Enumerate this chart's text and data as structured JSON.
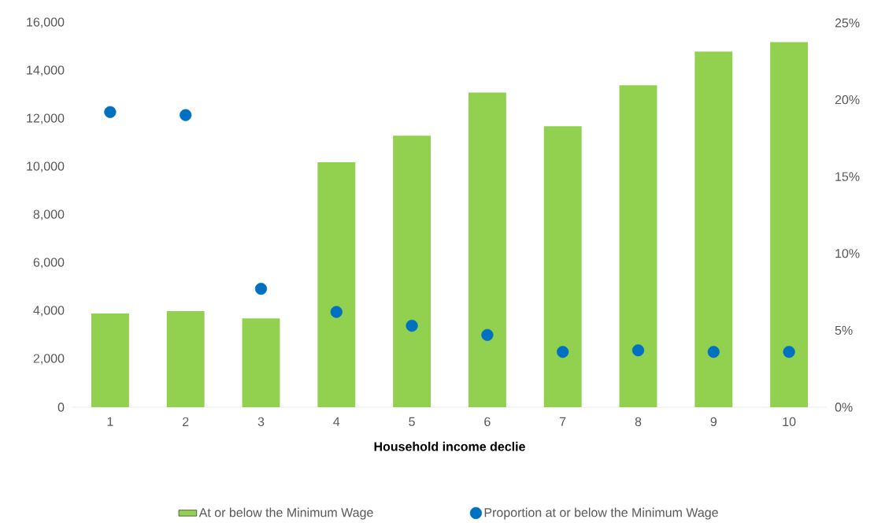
{
  "chart_data": {
    "type": "bar",
    "xlabel": "Household income declie",
    "categories": [
      "1",
      "2",
      "3",
      "4",
      "5",
      "6",
      "7",
      "8",
      "9",
      "10"
    ],
    "series": [
      {
        "name": "At or below the Minimum Wage",
        "color": "#92d050",
        "values": [
          3900,
          4000,
          3700,
          10200,
          11300,
          13100,
          11700,
          13400,
          14800,
          15200
        ]
      },
      {
        "name": "Proportion at or below the Minimum Wage",
        "type": "scatter",
        "axis": "y2",
        "color": "#0070c0",
        "values": [
          19.2,
          19.0,
          7.7,
          6.2,
          5.3,
          4.7,
          3.6,
          3.7,
          3.6,
          3.6
        ]
      }
    ],
    "ylim": [
      0,
      16000
    ],
    "yticks": [
      {
        "value": 0,
        "label": "0"
      },
      {
        "value": 2000,
        "label": "2,000"
      },
      {
        "value": 4000,
        "label": "4,000"
      },
      {
        "value": 6000,
        "label": "6,000"
      },
      {
        "value": 8000,
        "label": "8,000"
      },
      {
        "value": 10000,
        "label": "10,000"
      },
      {
        "value": 12000,
        "label": "12,000"
      },
      {
        "value": 14000,
        "label": "14,000"
      },
      {
        "value": 16000,
        "label": "16,000"
      }
    ],
    "y2lim": [
      0,
      25
    ],
    "y2ticks": [
      {
        "value": 0,
        "label": "0%"
      },
      {
        "value": 5,
        "label": "5%"
      },
      {
        "value": 10,
        "label": "10%"
      },
      {
        "value": 15,
        "label": "15%"
      },
      {
        "value": 20,
        "label": "20%"
      },
      {
        "value": 25,
        "label": "25%"
      }
    ],
    "legend": "bottom",
    "marker": "circle"
  }
}
